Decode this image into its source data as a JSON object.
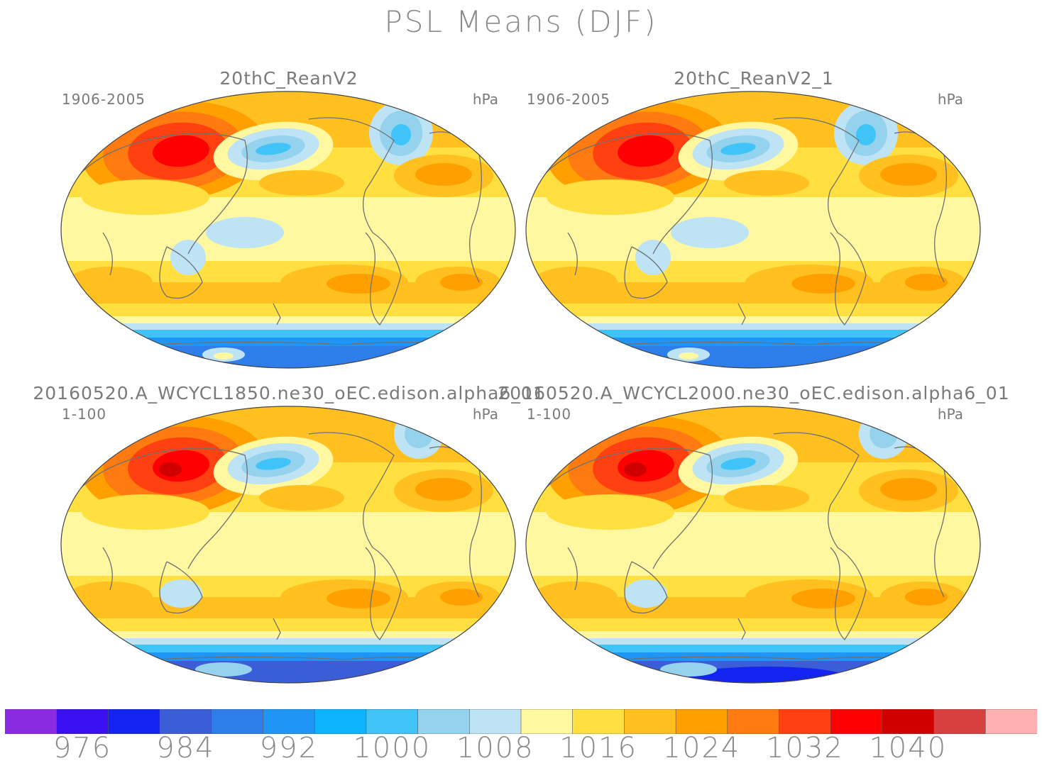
{
  "title": "PSL Means (DJF)",
  "panels": [
    {
      "title": "20thC_ReanV2",
      "period": "1906-2005",
      "units": "hPa",
      "variant": "obs"
    },
    {
      "title": "20thC_ReanV2_1",
      "period": "1906-2005",
      "units": "hPa",
      "variant": "obs"
    },
    {
      "title": "20160520.A_WCYCL1850.ne30_oEC.edison.alpha6_01",
      "period": "1-100",
      "units": "hPa",
      "variant": "model"
    },
    {
      "title": "20160520.A_WCYCL2000.ne30_oEC.edison.alpha6_01",
      "period": "1-100",
      "units": "hPa",
      "variant": "model2"
    }
  ],
  "colorbar": {
    "colors": [
      "#8a2be2",
      "#3a10f0",
      "#1424f0",
      "#3b5ed8",
      "#2f7de8",
      "#1f96f5",
      "#0fb4ff",
      "#40c4f8",
      "#95d2ee",
      "#bde3f5",
      "#fff8a0",
      "#ffe040",
      "#ffc020",
      "#ffa000",
      "#ff7a10",
      "#ff4010",
      "#ff0000",
      "#d00000",
      "#d84040",
      "#ffb0b0"
    ],
    "labels": [
      "976",
      "984",
      "992",
      "1000",
      "1008",
      "1016",
      "1024",
      "1032",
      "1040"
    ]
  }
}
